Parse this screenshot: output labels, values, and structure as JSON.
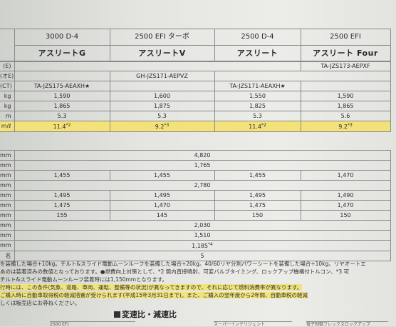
{
  "header": {
    "engines": [
      "3000 D-4",
      "2500 EFI ターボ",
      "2500 D-4",
      "2500 EFI"
    ],
    "trims": [
      "アスリートG",
      "アスリートV",
      "アスリート",
      "アスリート Four"
    ]
  },
  "model_codes": {
    "row_a_label": "(E)",
    "row_b_label": "(オE)",
    "row_c_label": "(CT)",
    "four": "TA-JZS173-AEPXF",
    "v": "GH-JZS171-AEPVZ",
    "athlete": "TA-JZS171-AEAXH★",
    "g": "TA-JZS175-AEAXH★"
  },
  "spec_top": [
    {
      "unit": "kg",
      "values": [
        "1,590",
        "1,600",
        "1,550",
        "1,590"
      ]
    },
    {
      "unit": "kg",
      "values": [
        "1,865",
        "1,875",
        "1,825",
        "1,865"
      ]
    },
    {
      "unit": "m",
      "values": [
        "5.3",
        "5.3",
        "5.3",
        "5.6"
      ]
    }
  ],
  "fuel_row": {
    "unit": "m/ℓ",
    "values": [
      "11.4",
      "9.2",
      "11.4",
      "9.2"
    ],
    "marks": [
      "*2",
      "*3",
      "*2",
      "*3"
    ]
  },
  "dims": {
    "length": {
      "unit": "mm",
      "value": "4,820"
    },
    "width": {
      "unit": "mm",
      "value": "1,765"
    },
    "height": {
      "unit": "mm",
      "values": [
        "1,455",
        "1,455",
        "1,455",
        "1,470"
      ]
    },
    "wheelbase": {
      "unit": "mm",
      "value": "2,780"
    },
    "tread_front": {
      "unit": "mm",
      "values": [
        "1,495",
        "1,495",
        "1,495",
        "1,490"
      ]
    },
    "tread_rear": {
      "unit": "mm",
      "values": [
        "1,475",
        "1,470",
        "1,475",
        "1,470"
      ]
    },
    "clearance": {
      "unit": "mm",
      "values": [
        "155",
        "145",
        "150",
        "150"
      ]
    },
    "room_length": {
      "unit": "mm",
      "value": "2,030"
    },
    "room_width": {
      "unit": "mm",
      "value": "1,510"
    },
    "room_height": {
      "unit": "mm",
      "value": "1,185",
      "mark": "*4"
    },
    "capacity": {
      "unit": "名",
      "value": "5"
    }
  },
  "notes": [
    "を装備した場合+10kg。チルト&スライド電動ムーンルーフを装備した場合+20kg。40/60リヤ分割パワーシートを装備した場合+10kg。リヤオートエ",
    "あのは装着済みの数値となっております。●燃費向上対策として、*2 筒内直接噴射、可変バルブタイミング、ロックアップ機構付トルコン、*3 可",
    "チルト&スライド電動ムーンルーフ装着時には1,150mmとなります。",
    "行時には、この条件(気象、道路、車両、運転、整備等の状況)が異なってきますので、それに応じて燃料消費率が異なります。",
    "ご購入時に自動車取得税の軽減措置が受けられます(平成15年3月31日まで)。また、ご購入の翌年度から2年間、自動車税の軽減",
    "しくは販売店にお尋ねください。"
  ],
  "section_title": "変速比・減速比",
  "bottom_stubs": [
    "2500 EFI",
    "スーパーインテリジェント",
    "電子制御フレックスロックアップ"
  ]
}
